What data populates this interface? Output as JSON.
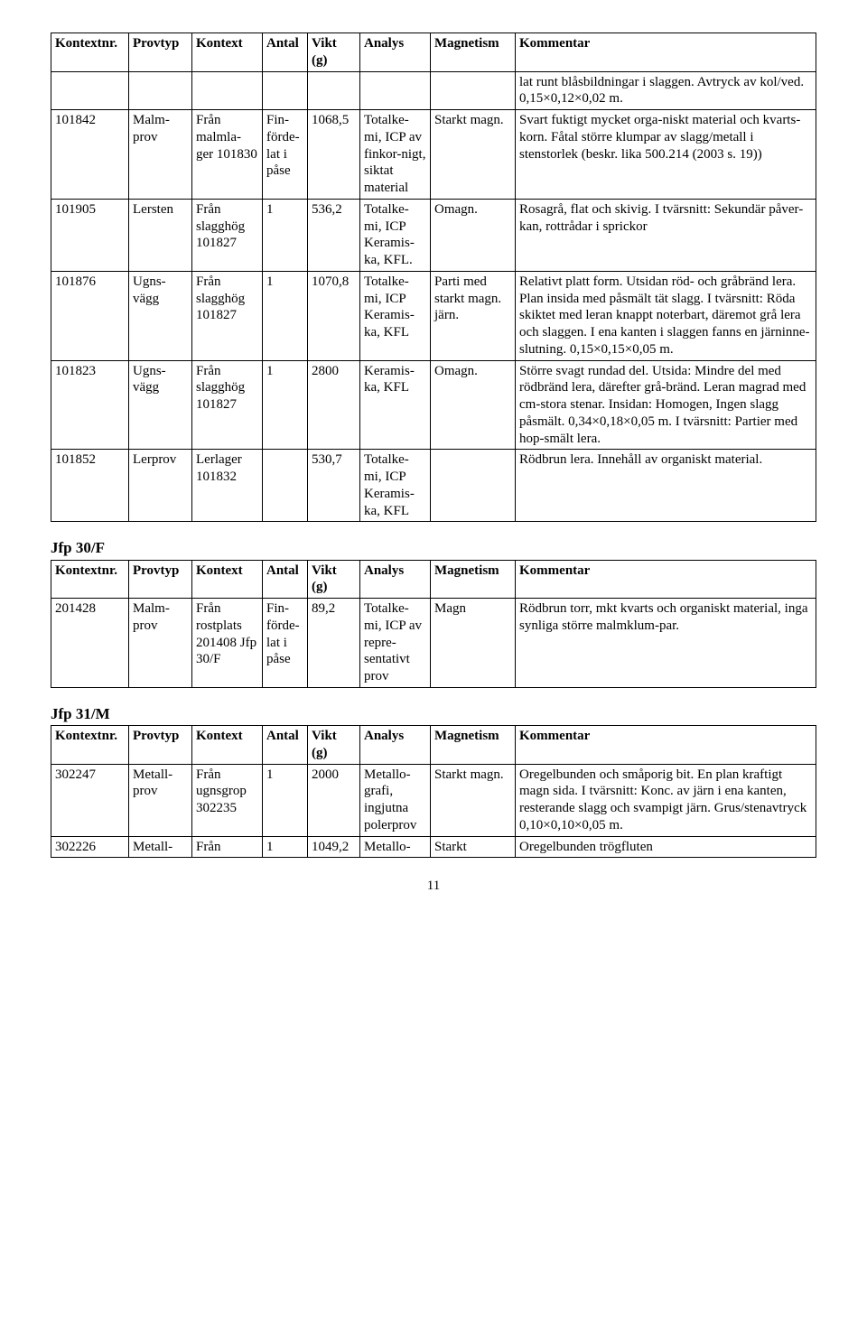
{
  "columnHeaders": {
    "kontextnr": "Kontextnr.",
    "provtyp": "Provtyp",
    "kontext": "Kontext",
    "antal": "Antal",
    "vikt": "Vikt (g)",
    "analys": "Analys",
    "magnetism": "Magnetism",
    "kommentar": "Kommentar"
  },
  "table1": {
    "rows": [
      {
        "kontextnr": "",
        "provtyp": "",
        "kontext": "",
        "antal": "",
        "vikt": "",
        "analys": "",
        "magnetism": "",
        "kommentar": "lat runt blåsbildningar i slaggen. Avtryck av kol/ved. 0,15×0,12×0,02 m."
      },
      {
        "kontextnr": "101842",
        "provtyp": "Malm-prov",
        "kontext": "Från malmla-ger 101830",
        "antal": "",
        "vikt": "1068,5",
        "analys": "Totalke-mi, ICP av finkor-nigt, siktat material",
        "magnetism": "Starkt magn.",
        "kommentar": "Svart fuktigt mycket orga-niskt material och kvarts-korn. Fåtal större klumpar av slagg/metall i stenstorlek (beskr. lika 500.214 (2003 s. 19))",
        "antal_extra": "Fin-förde-lat i påse"
      },
      {
        "kontextnr": "101905",
        "provtyp": "Lersten",
        "kontext": "Från slagghög 101827",
        "antal": "1",
        "vikt": "536,2",
        "analys": "Totalke-mi, ICP Keramis-ka, KFL.",
        "magnetism": "Omagn.",
        "kommentar": "Rosagrå, flat och skivig. I tvärsnitt: Sekundär påver-kan, rottrådar i sprickor"
      },
      {
        "kontextnr": "101876",
        "provtyp": "Ugns-vägg",
        "kontext": "Från slagghög 101827",
        "antal": "1",
        "vikt": "1070,8",
        "analys": "Totalke-mi, ICP Keramis-ka, KFL",
        "magnetism": "Parti med starkt magn. järn.",
        "kommentar": "Relativt platt form. Utsidan röd- och gråbränd lera. Plan insida med påsmält tät slagg. I tvärsnitt: Röda skiktet med leran knappt noterbart, däremot grå lera och slaggen. I ena kanten i slaggen fanns en järninne-slutning. 0,15×0,15×0,05 m."
      },
      {
        "kontextnr": "101823",
        "provtyp": "Ugns-vägg",
        "kontext": "Från slagghög 101827",
        "antal": "1",
        "vikt": "2800",
        "analys": "Keramis-ka, KFL",
        "magnetism": "Omagn.",
        "kommentar": "Större svagt rundad del. Utsida: Mindre del med rödbränd lera, därefter grå-bränd. Leran magrad med cm-stora stenar. Insidan: Homogen, Ingen slagg påsmält. 0,34×0,18×0,05 m. I tvärsnitt: Partier med hop-smält lera."
      },
      {
        "kontextnr": "101852",
        "provtyp": "Lerprov",
        "kontext": "Lerlager 101832",
        "antal": "",
        "vikt": "530,7",
        "analys": "Totalke-mi, ICP Keramis-ka, KFL",
        "magnetism": "",
        "kommentar": "Rödbrun lera. Innehåll av organiskt material."
      }
    ]
  },
  "section2": {
    "heading": "Jfp 30/F"
  },
  "table2": {
    "rows": [
      {
        "kontextnr": "201428",
        "provtyp": "Malm-prov",
        "kontext": "Från rostplats 201408 Jfp 30/F",
        "antal": "Fin-förde-lat i påse",
        "vikt": "89,2",
        "analys": "Totalke-mi, ICP av repre-sentativt prov",
        "magnetism": "Magn",
        "kommentar": "Rödbrun torr, mkt kvarts och organiskt material, inga synliga större malmklum-par."
      }
    ]
  },
  "section3": {
    "heading": "Jfp 31/M"
  },
  "table3": {
    "rows": [
      {
        "kontextnr": "302247",
        "provtyp": "Metall-prov",
        "kontext": "Från ugnsgrop 302235",
        "antal": "1",
        "vikt": "2000",
        "analys": "Metallo-grafi, ingjutna polerprov",
        "magnetism": "Starkt magn.",
        "kommentar": "Oregelbunden och småporig bit. En plan kraftigt magn sida. I tvärsnitt: Konc. av järn i ena kanten, resterande slagg och svampigt järn. Grus/stenavtryck 0,10×0,10×0,05 m."
      },
      {
        "kontextnr": "302226",
        "provtyp": "Metall-",
        "kontext": "Från",
        "antal": "1",
        "vikt": "1049,2",
        "analys": "Metallo-",
        "magnetism": "Starkt",
        "kommentar": "Oregelbunden trögfluten"
      }
    ]
  },
  "pageNumber": "11"
}
